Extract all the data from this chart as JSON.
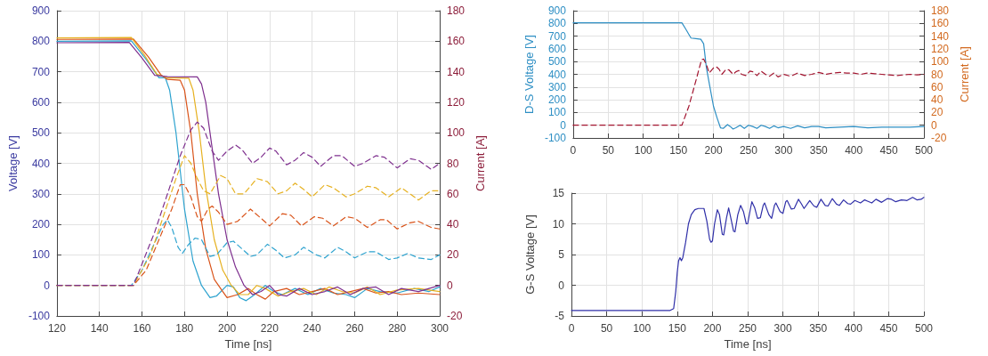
{
  "chart_data": [
    {
      "type": "line",
      "xlabel": "Time [ns]",
      "ylabel": "Voltage [V]",
      "y2label": "Current [A]",
      "xlim": [
        120,
        300
      ],
      "xticks": [
        120,
        140,
        160,
        180,
        200,
        220,
        240,
        260,
        280,
        300
      ],
      "ylim": [
        -100,
        900
      ],
      "yticks": [
        -100,
        0,
        100,
        200,
        300,
        400,
        500,
        600,
        700,
        800,
        900
      ],
      "y2lim": [
        -20,
        180
      ],
      "y2ticks": [
        -20,
        0,
        20,
        40,
        60,
        80,
        100,
        120,
        140,
        160,
        180
      ],
      "grid": true,
      "marker": "none",
      "series": [
        {
          "color": "#2ea3cf",
          "line_style": "solid",
          "x": [
            120,
            155,
            162,
            168,
            171,
            173,
            176,
            180,
            184,
            188,
            192,
            195,
            200,
            203,
            206,
            209,
            213,
            218,
            222,
            226,
            232,
            238,
            244,
            250,
            256,
            260,
            266,
            272,
            280,
            288,
            295,
            300
          ],
          "values": [
            800,
            801,
            740,
            680,
            680,
            640,
            500,
            250,
            80,
            0,
            -40,
            -35,
            0,
            -5,
            -40,
            -50,
            -30,
            0,
            -20,
            -30,
            -10,
            -30,
            -10,
            -25,
            -30,
            -40,
            -10,
            -20,
            -25,
            -10,
            -20,
            -5
          ]
        },
        {
          "color": "#d95319",
          "line_style": "solid",
          "x": [
            120,
            156,
            163,
            169,
            172,
            178,
            180,
            183,
            186,
            190,
            194,
            198,
            200,
            205,
            210,
            214,
            218,
            222,
            228,
            234,
            240,
            246,
            252,
            258,
            264,
            270,
            276,
            282,
            290,
            300
          ],
          "values": [
            806,
            807,
            749,
            689,
            675,
            672,
            640,
            500,
            300,
            120,
            20,
            -20,
            -40,
            -30,
            -10,
            -30,
            -45,
            -20,
            -10,
            -30,
            -20,
            -10,
            -30,
            -20,
            -10,
            -25,
            -20,
            -30,
            -25,
            -30
          ]
        },
        {
          "color": "#e6b120",
          "line_style": "solid",
          "x": [
            120,
            155,
            161,
            167,
            172,
            182,
            184,
            187,
            190,
            194,
            198,
            202,
            206,
            210,
            214,
            218,
            224,
            230,
            236,
            242,
            248,
            254,
            260,
            266,
            272,
            280,
            290,
            300
          ],
          "values": [
            811,
            812,
            756,
            692,
            680,
            679,
            640,
            500,
            320,
            150,
            50,
            0,
            -30,
            -30,
            0,
            -10,
            -35,
            -20,
            -10,
            -30,
            -5,
            -20,
            -25,
            -5,
            -30,
            -15,
            -10,
            -20
          ]
        },
        {
          "color": "#7e2f8e",
          "line_style": "solid",
          "x": [
            120,
            154,
            160,
            166,
            172,
            186,
            188,
            190,
            193,
            196,
            200,
            204,
            208,
            212,
            216,
            220,
            224,
            228,
            234,
            240,
            246,
            252,
            258,
            264,
            270,
            276,
            282,
            290,
            300
          ],
          "values": [
            795,
            796,
            745,
            688,
            684,
            683,
            660,
            600,
            450,
            300,
            150,
            60,
            0,
            -30,
            -20,
            0,
            -30,
            -35,
            -10,
            -30,
            -20,
            -5,
            -30,
            -10,
            -5,
            -30,
            -10,
            -20,
            0
          ]
        },
        {
          "color": "#2ea3cf",
          "line_style": "dashed",
          "axis": "y2",
          "x": [
            120,
            155,
            160,
            165,
            170,
            172,
            174,
            177,
            179,
            182,
            185,
            188,
            192,
            195,
            200,
            203,
            207,
            211,
            214,
            219,
            223,
            227,
            232,
            236,
            242,
            246,
            252,
            256,
            260,
            266,
            270,
            276,
            280,
            285,
            290,
            296,
            300
          ],
          "values": [
            0,
            0,
            10,
            25,
            40,
            43,
            38,
            25,
            21,
            27,
            31,
            30,
            19,
            20,
            28,
            29,
            24,
            19,
            20,
            27,
            23,
            18,
            20,
            25,
            20,
            18,
            25,
            22,
            18,
            22,
            22,
            17,
            18,
            21,
            18,
            17,
            20
          ]
        },
        {
          "color": "#d95319",
          "line_style": "dashed",
          "axis": "y2",
          "x": [
            120,
            156,
            162,
            168,
            174,
            178,
            180,
            183,
            186,
            188,
            191,
            193,
            196,
            200,
            205,
            211,
            216,
            220,
            226,
            230,
            235,
            241,
            245,
            250,
            256,
            260,
            266,
            272,
            275,
            280,
            286,
            290,
            296,
            300
          ],
          "values": [
            0,
            0,
            10,
            30,
            50,
            66,
            66,
            58,
            45,
            42,
            50,
            52,
            48,
            40,
            42,
            50,
            44,
            39,
            47,
            46,
            39,
            45,
            44,
            39,
            45,
            44,
            38,
            43,
            43,
            37,
            41,
            42,
            38,
            37
          ]
        },
        {
          "color": "#e6b120",
          "line_style": "dashed",
          "axis": "y2",
          "x": [
            120,
            156,
            164,
            170,
            176,
            180,
            183,
            186,
            189,
            192,
            197,
            200,
            204,
            208,
            214,
            219,
            224,
            228,
            232,
            236,
            240,
            246,
            250,
            256,
            260,
            266,
            270,
            276,
            282,
            286,
            290,
            296,
            300
          ],
          "values": [
            0,
            0,
            20,
            45,
            70,
            85,
            80,
            70,
            62,
            60,
            72,
            70,
            60,
            60,
            70,
            68,
            60,
            62,
            67,
            63,
            58,
            66,
            64,
            58,
            60,
            65,
            64,
            58,
            64,
            60,
            56,
            62,
            62
          ]
        },
        {
          "color": "#7e2f8e",
          "line_style": "dashed",
          "axis": "y2",
          "x": [
            120,
            156,
            166,
            172,
            178,
            183,
            186,
            189,
            193,
            196,
            200,
            204,
            207,
            212,
            216,
            220,
            223,
            228,
            232,
            236,
            240,
            244,
            250,
            254,
            260,
            264,
            270,
            274,
            280,
            286,
            290,
            296,
            300
          ],
          "values": [
            0,
            0,
            35,
            60,
            85,
            102,
            107,
            103,
            88,
            82,
            88,
            92,
            89,
            80,
            84,
            90,
            88,
            79,
            82,
            87,
            84,
            78,
            85,
            85,
            78,
            80,
            85,
            84,
            77,
            83,
            82,
            76,
            80
          ]
        }
      ]
    },
    {
      "type": "line",
      "ylabel": "D-S Voltage [V]",
      "y2label": "Current [A]",
      "xlim": [
        0,
        500
      ],
      "xticks": [
        0,
        50,
        100,
        150,
        200,
        250,
        300,
        350,
        400,
        450,
        500
      ],
      "ylim": [
        -100,
        900
      ],
      "yticks": [
        -100,
        0,
        100,
        200,
        300,
        400,
        500,
        600,
        700,
        800,
        900
      ],
      "y2lim": [
        -20,
        180
      ],
      "y2ticks": [
        -20,
        0,
        20,
        40,
        60,
        80,
        100,
        120,
        140,
        160,
        180
      ],
      "grid": true,
      "marker": "none",
      "series": [
        {
          "color": "#2e8fc4",
          "line_style": "solid",
          "x": [
            0,
            155,
            160,
            168,
            175,
            182,
            186,
            190,
            195,
            200,
            205,
            210,
            214,
            220,
            224,
            228,
            232,
            238,
            244,
            250,
            256,
            262,
            268,
            274,
            280,
            286,
            292,
            300,
            310,
            320,
            330,
            340,
            350,
            360,
            380,
            400,
            420,
            440,
            460,
            480,
            500
          ],
          "values": [
            805,
            805,
            760,
            685,
            680,
            675,
            640,
            450,
            300,
            150,
            60,
            -20,
            -25,
            5,
            -10,
            -30,
            -20,
            0,
            -25,
            0,
            -10,
            -25,
            0,
            -10,
            -25,
            -5,
            -20,
            -10,
            -25,
            -5,
            -20,
            -10,
            -10,
            -20,
            -15,
            -10,
            -20,
            -15,
            -15,
            -15,
            -10
          ]
        },
        {
          "color": "#a2142f",
          "line_style": "dashed",
          "axis": "y2",
          "x": [
            0,
            155,
            165,
            175,
            183,
            186,
            190,
            194,
            200,
            204,
            208,
            212,
            218,
            222,
            228,
            232,
            236,
            240,
            246,
            252,
            256,
            262,
            268,
            274,
            280,
            286,
            292,
            300,
            310,
            320,
            330,
            340,
            350,
            360,
            370,
            380,
            390,
            400,
            410,
            420,
            430,
            440,
            450,
            460,
            470,
            480,
            490,
            500
          ],
          "values": [
            0,
            0,
            30,
            70,
            103,
            104,
            95,
            82,
            90,
            92,
            88,
            80,
            88,
            87,
            80,
            84,
            86,
            80,
            78,
            85,
            84,
            78,
            85,
            80,
            77,
            82,
            76,
            80,
            77,
            82,
            78,
            80,
            83,
            80,
            82,
            83,
            82,
            82,
            80,
            82,
            81,
            80,
            79,
            78,
            79,
            80,
            79,
            80
          ]
        }
      ]
    },
    {
      "type": "line",
      "xlabel": "Time [ns]",
      "ylabel": "G-S Voltage [V]",
      "xlim": [
        0,
        500
      ],
      "xticks": [
        0,
        50,
        100,
        150,
        200,
        250,
        300,
        350,
        400,
        450,
        500
      ],
      "ylim": [
        -5,
        15
      ],
      "yticks": [
        -5,
        0,
        5,
        10,
        15
      ],
      "grid": true,
      "marker": "none",
      "series": [
        {
          "color": "#2f2fa8",
          "line_style": "solid",
          "x": [
            0,
            140,
            145,
            148,
            150,
            152,
            154,
            156,
            158,
            162,
            166,
            170,
            175,
            180,
            188,
            192,
            196,
            198,
            200,
            203,
            207,
            210,
            214,
            216,
            220,
            223,
            226,
            230,
            232,
            236,
            240,
            244,
            248,
            250,
            254,
            256,
            260,
            264,
            268,
            272,
            274,
            280,
            284,
            288,
            290,
            296,
            300,
            304,
            306,
            312,
            316,
            322,
            326,
            330,
            338,
            344,
            348,
            354,
            360,
            364,
            370,
            376,
            380,
            386,
            392,
            396,
            402,
            410,
            416,
            420,
            426,
            432,
            440,
            448,
            454,
            460,
            468,
            476,
            484,
            490,
            496,
            500
          ],
          "values": [
            -4.1,
            -4.1,
            -3.8,
            -1,
            2,
            4,
            4.5,
            4,
            4.5,
            7,
            10,
            11.5,
            12.3,
            12.5,
            12.5,
            10.5,
            7.5,
            7,
            7.2,
            10,
            12.3,
            11.5,
            8.3,
            8.2,
            11,
            12.6,
            11,
            8.8,
            8.7,
            11.5,
            13,
            12,
            10,
            10,
            12.5,
            13.6,
            12.6,
            10.9,
            11,
            13,
            13.4,
            11.5,
            10.9,
            13,
            13.4,
            12,
            11.7,
            13.6,
            13.8,
            12.4,
            12.5,
            14,
            13.3,
            12.5,
            13.8,
            12.9,
            12.7,
            14,
            13,
            12.9,
            14.1,
            13.2,
            13,
            13.9,
            13.3,
            13.2,
            13.8,
            13.4,
            13.9,
            13.7,
            13.4,
            14,
            13.5,
            14.1,
            14,
            13.6,
            13.9,
            13.8,
            14.3,
            13.9,
            14,
            14.3
          ]
        }
      ]
    }
  ]
}
